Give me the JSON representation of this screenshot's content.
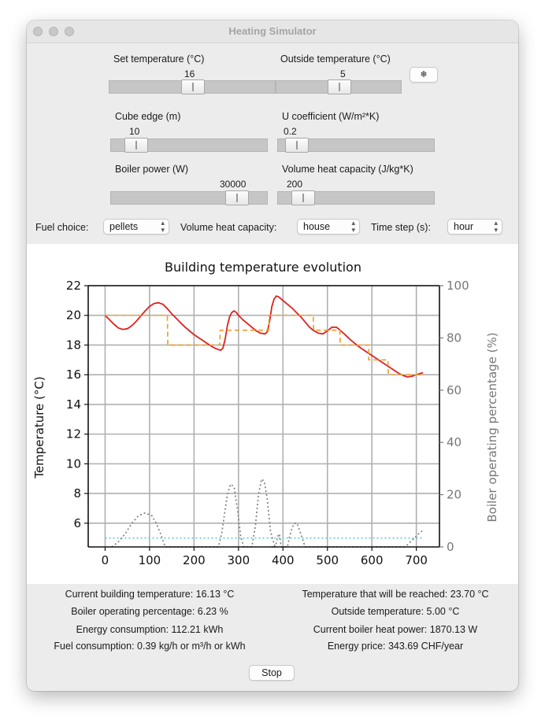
{
  "window": {
    "title": "Heating Simulator"
  },
  "controls": {
    "set_temperature": {
      "label": "Set temperature (°C)",
      "value": "16",
      "level": 0.5
    },
    "outside_temperature": {
      "label": "Outside temperature (°C)",
      "value": "5",
      "level": 0.5
    },
    "snow_button": {
      "label": "❄",
      "icon": "snowflake-icon"
    },
    "cube_edge": {
      "label": "Cube edge (m)",
      "value": "10",
      "level": 0.1
    },
    "u_coefficient": {
      "label": "U coefficient (W/m²*K)",
      "value": "0.2",
      "level": 0.05
    },
    "boiler_power": {
      "label": "Boiler power (W)",
      "value": "30000",
      "level": 0.85
    },
    "volume_heat_capacity_slider": {
      "label": "Volume heat capacity (J/kg*K)",
      "value": "200",
      "level": 0.1
    }
  },
  "selectors": {
    "fuel": {
      "label": "Fuel choice:",
      "value": "pellets"
    },
    "volume_heat_capacity": {
      "label": "Volume heat capacity:",
      "value": "house"
    },
    "time_step": {
      "label": "Time step (s):",
      "value": "hour"
    }
  },
  "chart_data": {
    "type": "line",
    "title": "Building temperature evolution",
    "ylabel": "Temperature (°C)",
    "y2label": "Boiler operating percentage (%)",
    "xlim": [
      -38,
      752
    ],
    "ylim": [
      4.4,
      22
    ],
    "y2lim": [
      0,
      100
    ],
    "xticks": [
      0,
      100,
      200,
      300,
      400,
      500,
      600,
      700
    ],
    "yticks": [
      6,
      8,
      10,
      12,
      14,
      16,
      18,
      20,
      22
    ],
    "y2ticks": [
      0,
      20,
      40,
      60,
      80,
      100
    ],
    "grid": true,
    "series": [
      {
        "color": "#e02020",
        "style": "solid",
        "axis": "left",
        "x": [
          0,
          10,
          20,
          30,
          40,
          50,
          60,
          70,
          80,
          90,
          100,
          110,
          120,
          130,
          140,
          150,
          160,
          170,
          180,
          190,
          200,
          210,
          220,
          230,
          240,
          250,
          260,
          265,
          270,
          275,
          280,
          285,
          290,
          295,
          300,
          310,
          320,
          330,
          340,
          350,
          360,
          365,
          370,
          375,
          380,
          385,
          390,
          400,
          410,
          420,
          430,
          440,
          450,
          460,
          470,
          480,
          490,
          500,
          510,
          520,
          525,
          530,
          540,
          550,
          560,
          570,
          580,
          590,
          600,
          610,
          620,
          630,
          640,
          650,
          660,
          670,
          680,
          690,
          700,
          710,
          715
        ],
        "y": [
          20.0,
          19.7,
          19.4,
          19.15,
          19.05,
          19.1,
          19.3,
          19.6,
          19.95,
          20.3,
          20.6,
          20.8,
          20.85,
          20.75,
          20.45,
          20.1,
          19.8,
          19.5,
          19.2,
          18.95,
          18.7,
          18.5,
          18.3,
          18.1,
          17.9,
          17.75,
          17.65,
          17.8,
          18.4,
          19.3,
          19.9,
          20.2,
          20.3,
          20.2,
          20.0,
          19.7,
          19.45,
          19.2,
          18.95,
          18.8,
          18.75,
          18.9,
          19.6,
          20.6,
          21.1,
          21.3,
          21.25,
          21.0,
          20.75,
          20.5,
          20.2,
          19.9,
          19.55,
          19.2,
          18.95,
          18.8,
          18.75,
          18.95,
          19.2,
          19.2,
          19.1,
          18.95,
          18.7,
          18.4,
          18.15,
          17.9,
          17.7,
          17.5,
          17.3,
          17.1,
          16.9,
          16.7,
          16.5,
          16.3,
          16.1,
          15.95,
          15.85,
          15.9,
          16.0,
          16.1,
          16.13
        ]
      },
      {
        "color": "#f0a030",
        "style": "dashed",
        "axis": "left",
        "x": [
          0,
          107,
          108,
          140,
          141,
          258,
          259,
          337,
          338,
          368,
          369,
          442,
          443,
          468,
          469,
          520,
          521,
          528,
          529,
          592,
          593,
          593,
          594,
          636,
          637,
          716
        ],
        "y": [
          20,
          20,
          20,
          20,
          18,
          18,
          19,
          19,
          19,
          19,
          20,
          20,
          20,
          20,
          19,
          19,
          19,
          19,
          18,
          18,
          18,
          17,
          17,
          17,
          16,
          16
        ]
      },
      {
        "color": "#60c8e0",
        "style": "dotted",
        "axis": "left",
        "x": [
          0,
          716
        ],
        "y": [
          5,
          5
        ]
      },
      {
        "color": "#808080",
        "style": "dotted",
        "axis": "right",
        "x": [
          15,
          30,
          45,
          60,
          75,
          90,
          105,
          115,
          125,
          135,
          255,
          262,
          268,
          275,
          282,
          290,
          298,
          305,
          312,
          330,
          338,
          345,
          352,
          358,
          365,
          372,
          382,
          375,
          383,
          388,
          392,
          396,
          410,
          415,
          420,
          425,
          432,
          440,
          450,
          600,
          675,
          705,
          712,
          716
        ],
        "y": [
          0,
          2,
          5,
          9,
          12,
          13,
          12,
          9,
          5,
          0,
          0,
          5,
          12,
          20,
          24,
          23,
          14,
          4,
          0,
          0,
          8,
          20,
          26,
          25,
          18,
          6,
          0,
          0,
          0,
          4,
          5,
          0,
          0,
          4,
          7,
          9,
          9,
          5,
          0,
          0,
          0,
          5,
          6,
          6
        ]
      }
    ]
  },
  "stats": {
    "current_building_temperature": "Current building temperature: 16.13 °C",
    "temperature_reached": "Temperature that will be reached: 23.70 °C",
    "boiler_operating_percentage": "Boiler operating percentage: 6.23 %",
    "outside_temperature": "Outside temperature: 5.00 °C",
    "energy_consumption": "Energy consumption: 112.21 kWh",
    "boiler_heat_power": "Current boiler heat power: 1870.13 W",
    "fuel_consumption": "Fuel consumption: 0.39 kg/h or m³/h or kWh",
    "energy_price": "Energy price: 343.69 CHF/year"
  },
  "footer": {
    "stop_label": "Stop"
  }
}
